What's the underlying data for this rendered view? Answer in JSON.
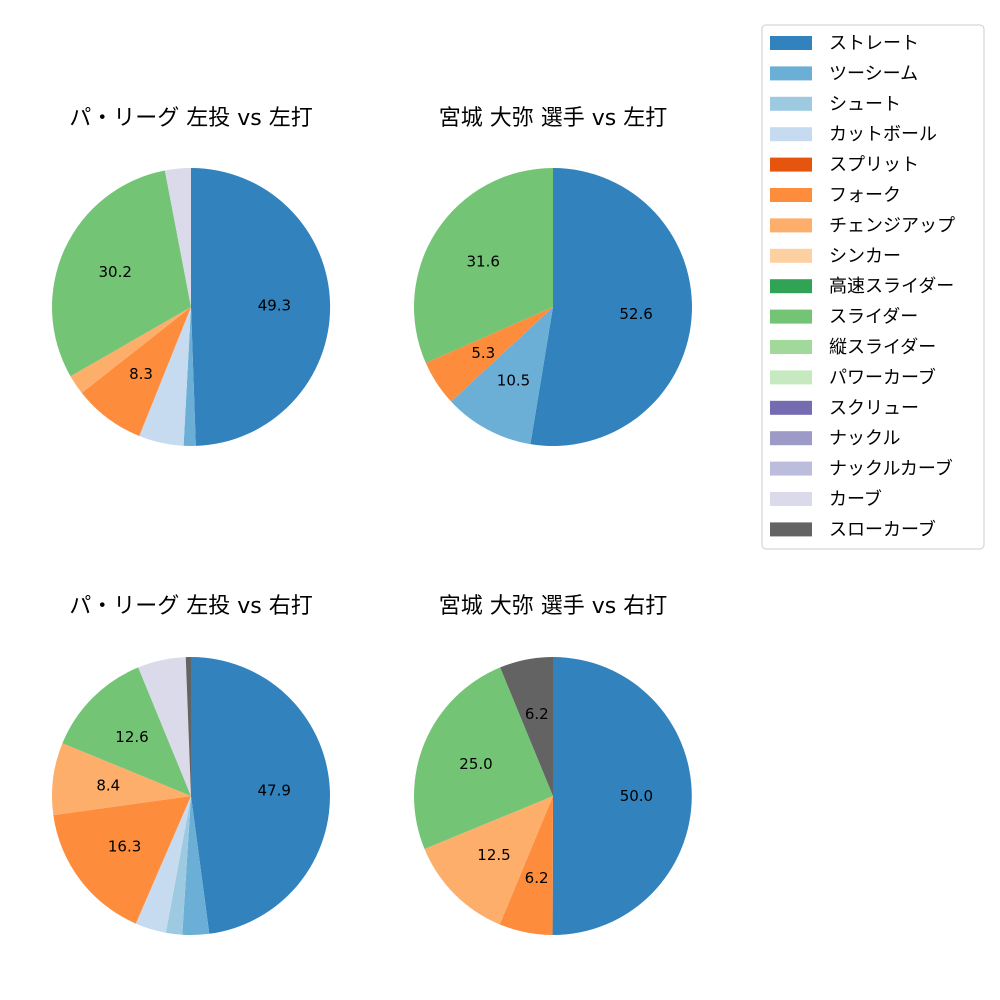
{
  "legend": [
    {
      "name": "ストレート",
      "color": "#3182bd"
    },
    {
      "name": "ツーシーム",
      "color": "#6baed6"
    },
    {
      "name": "シュート",
      "color": "#9ecae1"
    },
    {
      "name": "カットボール",
      "color": "#c6dbef"
    },
    {
      "name": "スプリット",
      "color": "#e6550d"
    },
    {
      "name": "フォーク",
      "color": "#fd8d3c"
    },
    {
      "name": "チェンジアップ",
      "color": "#fdae6b"
    },
    {
      "name": "シンカー",
      "color": "#fdd0a2"
    },
    {
      "name": "高速スライダー",
      "color": "#31a354"
    },
    {
      "name": "スライダー",
      "color": "#74c476"
    },
    {
      "name": "縦スライダー",
      "color": "#a1d99b"
    },
    {
      "name": "パワーカーブ",
      "color": "#c7e9c0"
    },
    {
      "name": "スクリュー",
      "color": "#756bb1"
    },
    {
      "name": "ナックル",
      "color": "#9e9ac8"
    },
    {
      "name": "ナックルカーブ",
      "color": "#bcbddc"
    },
    {
      "name": "カーブ",
      "color": "#dadaeb"
    },
    {
      "name": "スローカーブ",
      "color": "#636363"
    }
  ],
  "chart_data": [
    {
      "type": "pie",
      "title": "パ・リーグ 左投 vs 左打",
      "slices": [
        {
          "name": "ストレート",
          "value": 49.3,
          "label": "49.3"
        },
        {
          "name": "ツーシーム",
          "value": 1.4,
          "label": ""
        },
        {
          "name": "カットボール",
          "value": 5.2,
          "label": ""
        },
        {
          "name": "フォーク",
          "value": 8.3,
          "label": "8.3"
        },
        {
          "name": "チェンジアップ",
          "value": 2.3,
          "label": ""
        },
        {
          "name": "スライダー",
          "value": 30.2,
          "label": "30.2"
        },
        {
          "name": "カーブ",
          "value": 3.0,
          "label": ""
        }
      ]
    },
    {
      "type": "pie",
      "title": "宮城 大弥 選手 vs 左打",
      "slices": [
        {
          "name": "ストレート",
          "value": 52.6,
          "label": "52.6"
        },
        {
          "name": "ツーシーム",
          "value": 10.5,
          "label": "10.5"
        },
        {
          "name": "フォーク",
          "value": 5.3,
          "label": "5.3"
        },
        {
          "name": "スライダー",
          "value": 31.6,
          "label": "31.6"
        }
      ]
    },
    {
      "type": "pie",
      "title": "パ・リーグ 左投 vs 右打",
      "slices": [
        {
          "name": "ストレート",
          "value": 47.9,
          "label": "47.9"
        },
        {
          "name": "ツーシーム",
          "value": 3.1,
          "label": ""
        },
        {
          "name": "シュート",
          "value": 1.9,
          "label": ""
        },
        {
          "name": "カットボール",
          "value": 3.6,
          "label": ""
        },
        {
          "name": "フォーク",
          "value": 16.3,
          "label": "16.3"
        },
        {
          "name": "チェンジアップ",
          "value": 8.4,
          "label": "8.4"
        },
        {
          "name": "スライダー",
          "value": 12.6,
          "label": "12.6"
        },
        {
          "name": "カーブ",
          "value": 5.6,
          "label": ""
        },
        {
          "name": "スローカーブ",
          "value": 0.6,
          "label": ""
        }
      ]
    },
    {
      "type": "pie",
      "title": "宮城 大弥 選手 vs 右打",
      "slices": [
        {
          "name": "ストレート",
          "value": 50.0,
          "label": "50.0"
        },
        {
          "name": "フォーク",
          "value": 6.2,
          "label": "6.2"
        },
        {
          "name": "チェンジアップ",
          "value": 12.5,
          "label": "12.5"
        },
        {
          "name": "スライダー",
          "value": 25.0,
          "label": "25.0"
        },
        {
          "name": "スローカーブ",
          "value": 6.2,
          "label": "6.2"
        }
      ]
    }
  ]
}
